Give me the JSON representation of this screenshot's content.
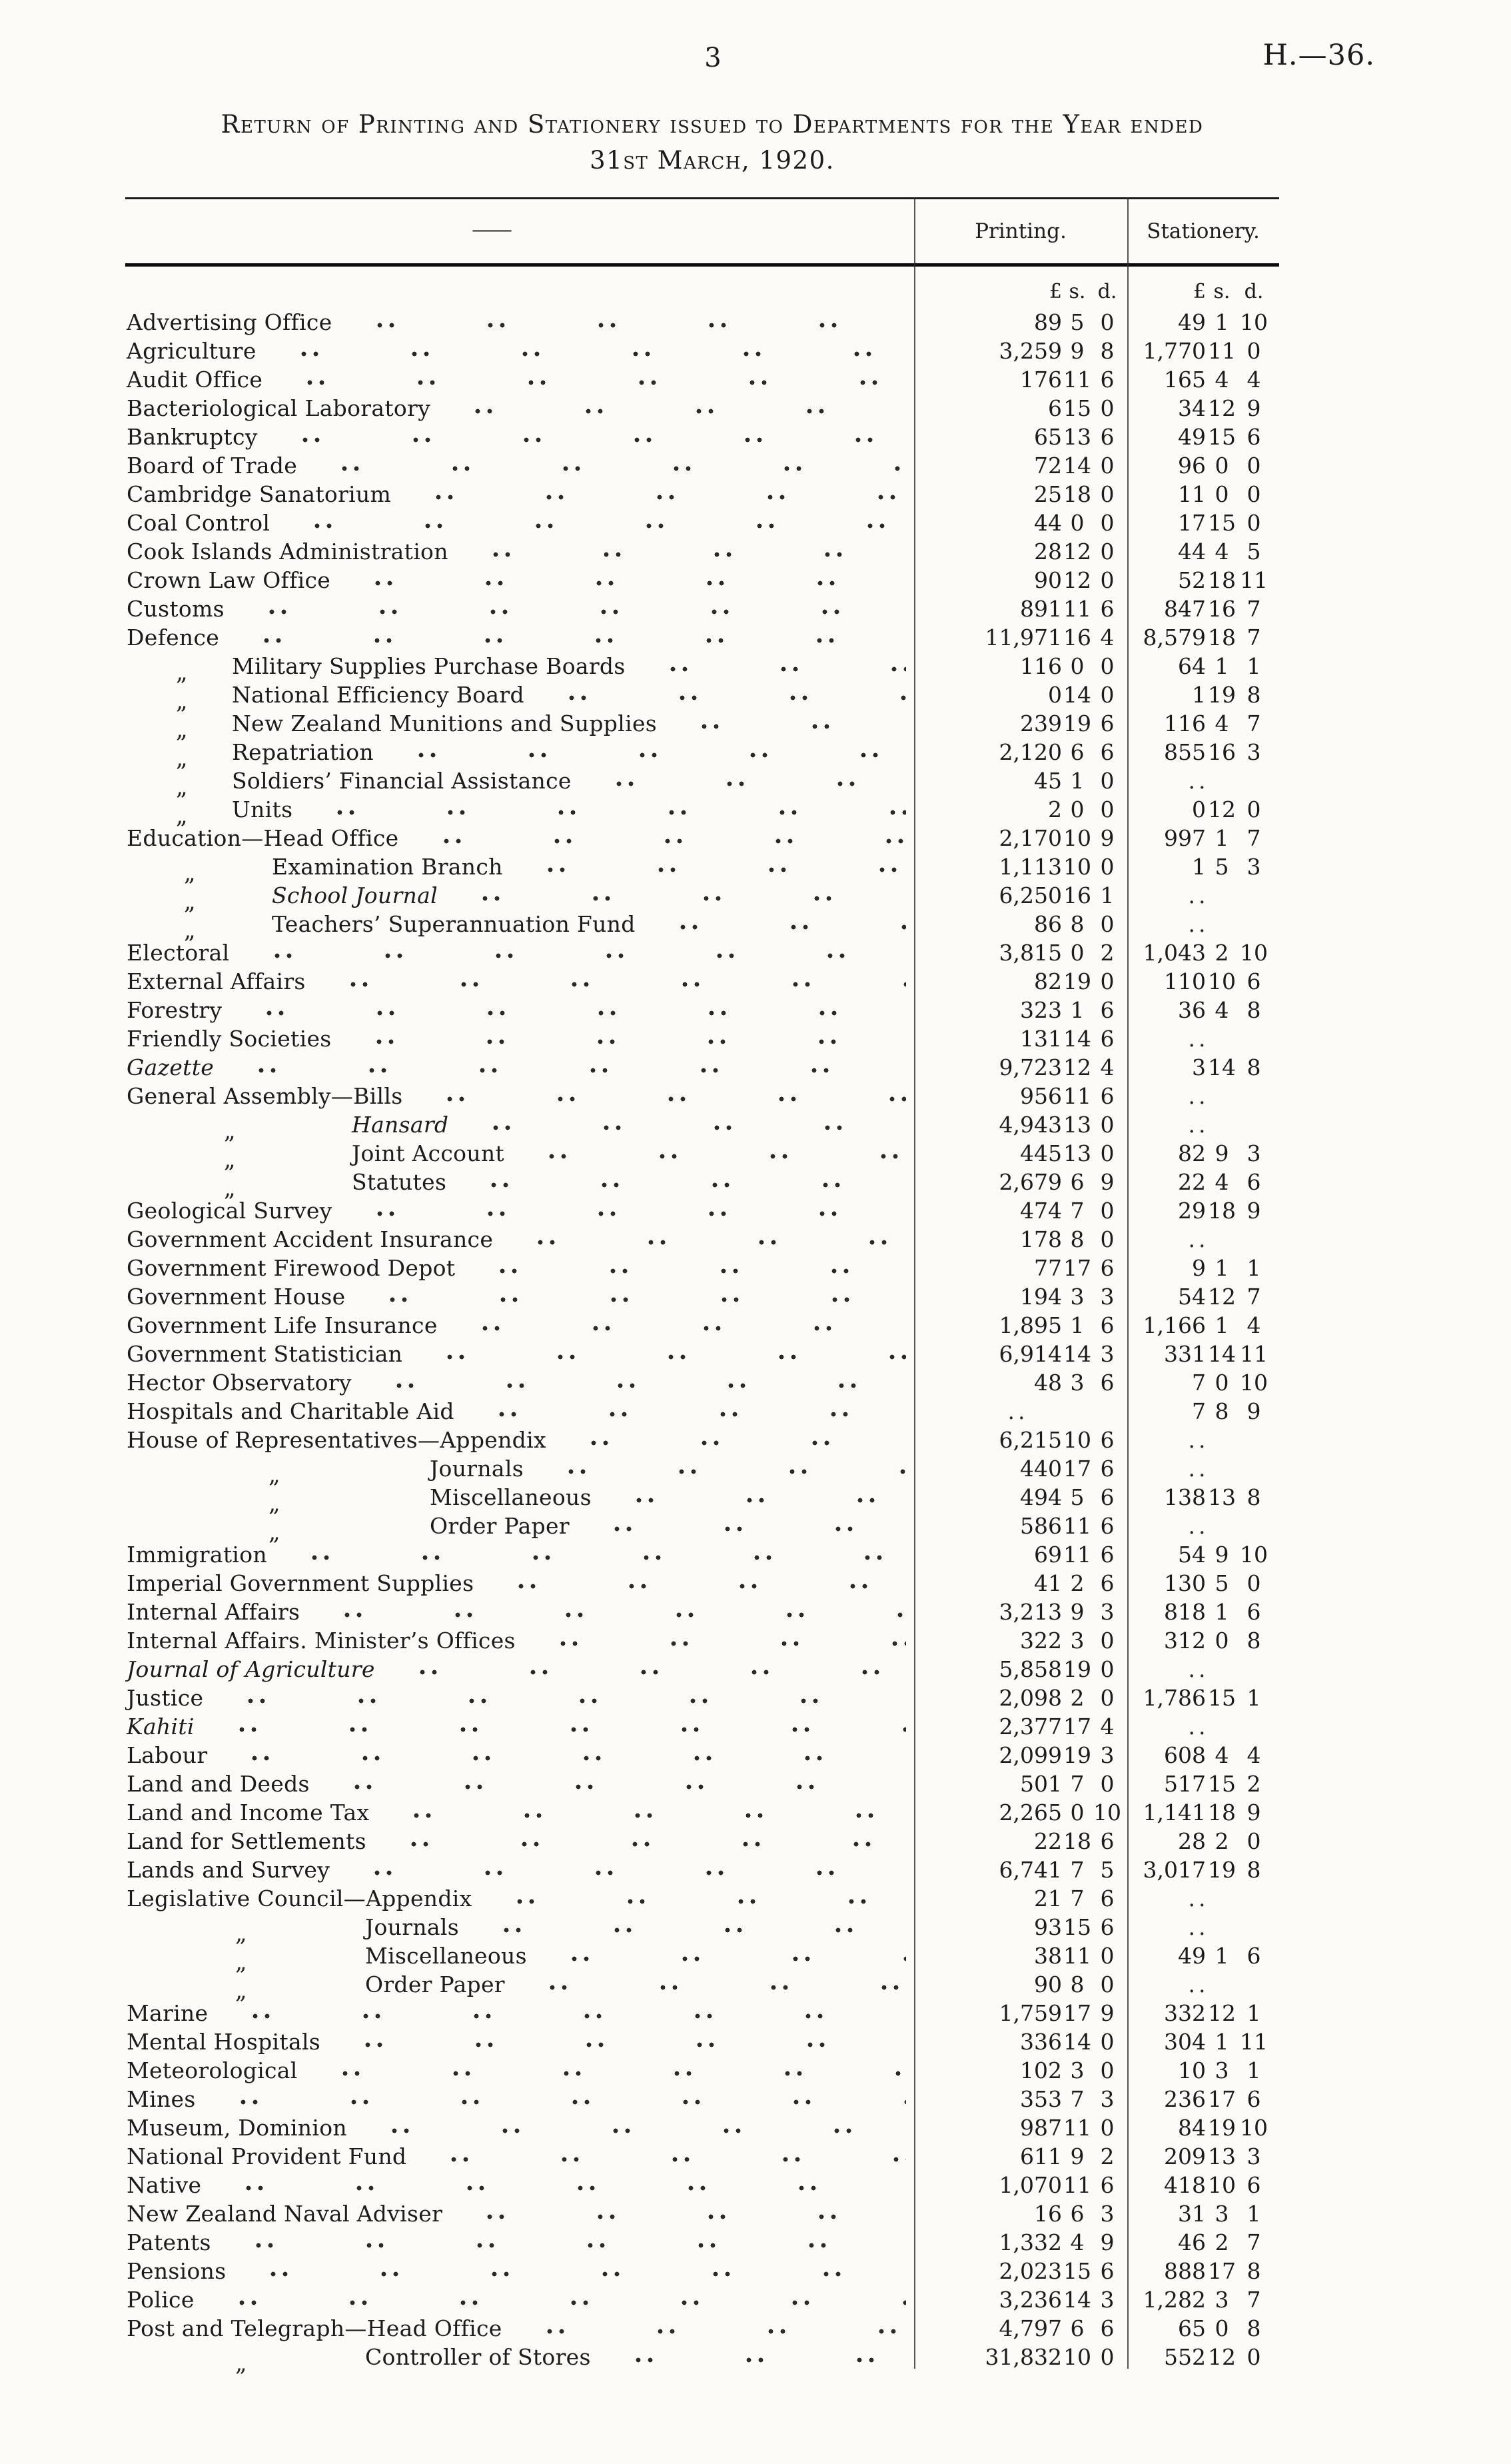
{
  "page": {
    "number": "3",
    "doc_ref": "H.—36."
  },
  "title": {
    "line1": "Return of Printing and Stationery issued to Departments for the Year ended",
    "line2": "31st March, 1920."
  },
  "table": {
    "name_header_dash": "——",
    "col_headers": {
      "printing": "Printing.",
      "stationery": "Stationery."
    },
    "money_units": [
      "£",
      "s.",
      "d."
    ],
    "ditto_mark": "„",
    "blank_mark": "..",
    "rows": [
      {
        "name": "Advertising Office",
        "printing": [
          "89",
          "5",
          "0"
        ],
        "stationery": [
          "49",
          "1",
          "10"
        ]
      },
      {
        "name": "Agriculture",
        "printing": [
          "3,259",
          "9",
          "8"
        ],
        "stationery": [
          "1,770",
          "11",
          "0"
        ]
      },
      {
        "name": "Audit Office",
        "printing": [
          "176",
          "11",
          "6"
        ],
        "stationery": [
          "165",
          "4",
          "4"
        ]
      },
      {
        "name": "Bacteriological Laboratory",
        "printing": [
          "6",
          "15",
          "0"
        ],
        "stationery": [
          "34",
          "12",
          "9"
        ]
      },
      {
        "name": "Bankruptcy",
        "printing": [
          "65",
          "13",
          "6"
        ],
        "stationery": [
          "49",
          "15",
          "6"
        ]
      },
      {
        "name": "Board of Trade",
        "printing": [
          "72",
          "14",
          "0"
        ],
        "stationery": [
          "96",
          "0",
          "0"
        ]
      },
      {
        "name": "Cambridge Sanatorium",
        "printing": [
          "25",
          "18",
          "0"
        ],
        "stationery": [
          "11",
          "0",
          "0"
        ]
      },
      {
        "name": "Coal Control",
        "printing": [
          "44",
          "0",
          "0"
        ],
        "stationery": [
          "17",
          "15",
          "0"
        ]
      },
      {
        "name": "Cook Islands Administration",
        "printing": [
          "28",
          "12",
          "0"
        ],
        "stationery": [
          "44",
          "4",
          "5"
        ]
      },
      {
        "name": "Crown Law Office",
        "printing": [
          "90",
          "12",
          "0"
        ],
        "stationery": [
          "52",
          "18",
          "11"
        ]
      },
      {
        "name": "Customs",
        "printing": [
          "891",
          "11",
          "6"
        ],
        "stationery": [
          "847",
          "16",
          "7"
        ]
      },
      {
        "name": "Defence",
        "printing": [
          "11,971",
          "16",
          "4"
        ],
        "stationery": [
          "8,579",
          "18",
          "7"
        ]
      },
      {
        "name": "Military Supplies Purchase Boards",
        "indent": "a",
        "ditto": true,
        "printing": [
          "116",
          "0",
          "0"
        ],
        "stationery": [
          "64",
          "1",
          "1"
        ]
      },
      {
        "name": "National Efficiency Board",
        "indent": "a",
        "ditto": true,
        "printing": [
          "0",
          "14",
          "0"
        ],
        "stationery": [
          "1",
          "19",
          "8"
        ]
      },
      {
        "name": "New Zealand Munitions and Supplies",
        "indent": "a",
        "ditto": true,
        "printing": [
          "239",
          "19",
          "6"
        ],
        "stationery": [
          "116",
          "4",
          "7"
        ]
      },
      {
        "name": "Repatriation",
        "indent": "a",
        "ditto": true,
        "printing": [
          "2,120",
          "6",
          "6"
        ],
        "stationery": [
          "855",
          "16",
          "3"
        ]
      },
      {
        "name": "Soldiers’ Financial Assistance",
        "indent": "a",
        "ditto": true,
        "printing": [
          "45",
          "1",
          "0"
        ],
        "stationery": null
      },
      {
        "name": "Units",
        "indent": "a",
        "ditto": true,
        "printing": [
          "2",
          "0",
          "0"
        ],
        "stationery": [
          "0",
          "12",
          "0"
        ]
      },
      {
        "name": "Education—Head Office",
        "printing": [
          "2,170",
          "10",
          "9"
        ],
        "stationery": [
          "997",
          "1",
          "7"
        ]
      },
      {
        "name": "Examination Branch",
        "indent": "b",
        "ditto": true,
        "printing": [
          "1,113",
          "10",
          "0"
        ],
        "stationery": [
          "1",
          "5",
          "3"
        ]
      },
      {
        "name": "School Journal",
        "indent": "b",
        "ditto": true,
        "italic": true,
        "printing": [
          "6,250",
          "16",
          "1"
        ],
        "stationery": null
      },
      {
        "name": "Teachers’ Superannuation Fund",
        "indent": "b",
        "ditto": true,
        "printing": [
          "86",
          "8",
          "0"
        ],
        "stationery": null
      },
      {
        "name": "Electoral",
        "printing": [
          "3,815",
          "0",
          "2"
        ],
        "stationery": [
          "1,043",
          "2",
          "10"
        ]
      },
      {
        "name": "External Affairs",
        "printing": [
          "82",
          "19",
          "0"
        ],
        "stationery": [
          "110",
          "10",
          "6"
        ]
      },
      {
        "name": "Forestry",
        "printing": [
          "323",
          "1",
          "6"
        ],
        "stationery": [
          "36",
          "4",
          "8"
        ]
      },
      {
        "name": "Friendly Societies",
        "printing": [
          "131",
          "14",
          "6"
        ],
        "stationery": null
      },
      {
        "name": "Gazette",
        "italic": true,
        "printing": [
          "9,723",
          "12",
          "4"
        ],
        "stationery": [
          "3",
          "14",
          "8"
        ]
      },
      {
        "name": "General Assembly—Bills",
        "printing": [
          "956",
          "11",
          "6"
        ],
        "stationery": null
      },
      {
        "name": "Hansard",
        "indent": "c",
        "ditto": true,
        "italic": true,
        "printing": [
          "4,943",
          "13",
          "0"
        ],
        "stationery": null
      },
      {
        "name": "Joint Account",
        "indent": "c",
        "ditto": true,
        "printing": [
          "445",
          "13",
          "0"
        ],
        "stationery": [
          "82",
          "9",
          "3"
        ]
      },
      {
        "name": "Statutes",
        "indent": "c",
        "ditto": true,
        "printing": [
          "2,679",
          "6",
          "9"
        ],
        "stationery": [
          "22",
          "4",
          "6"
        ]
      },
      {
        "name": "Geological Survey",
        "printing": [
          "474",
          "7",
          "0"
        ],
        "stationery": [
          "29",
          "18",
          "9"
        ]
      },
      {
        "name": "Government Accident Insurance",
        "printing": [
          "178",
          "8",
          "0"
        ],
        "stationery": null
      },
      {
        "name": "Government Firewood Depot",
        "printing": [
          "77",
          "17",
          "6"
        ],
        "stationery": [
          "9",
          "1",
          "1"
        ]
      },
      {
        "name": "Government House",
        "printing": [
          "194",
          "3",
          "3"
        ],
        "stationery": [
          "54",
          "12",
          "7"
        ]
      },
      {
        "name": "Government Life Insurance",
        "printing": [
          "1,895",
          "1",
          "6"
        ],
        "stationery": [
          "1,166",
          "1",
          "4"
        ]
      },
      {
        "name": "Government Statistician",
        "printing": [
          "6,914",
          "14",
          "3"
        ],
        "stationery": [
          "331",
          "14",
          "11"
        ]
      },
      {
        "name": "Hector Observatory",
        "printing": [
          "48",
          "3",
          "6"
        ],
        "stationery": [
          "7",
          "0",
          "10"
        ]
      },
      {
        "name": "Hospitals and Charitable Aid",
        "printing": null,
        "stationery": [
          "7",
          "8",
          "9"
        ]
      },
      {
        "name": "House of Representatives—Appendix",
        "printing": [
          "6,215",
          "10",
          "6"
        ],
        "stationery": null
      },
      {
        "name": "Journals",
        "indent": "d",
        "ditto": true,
        "printing": [
          "440",
          "17",
          "6"
        ],
        "stationery": null
      },
      {
        "name": "Miscellaneous",
        "indent": "d",
        "ditto": true,
        "printing": [
          "494",
          "5",
          "6"
        ],
        "stationery": [
          "138",
          "13",
          "8"
        ]
      },
      {
        "name": "Order Paper",
        "indent": "d",
        "ditto": true,
        "printing": [
          "586",
          "11",
          "6"
        ],
        "stationery": null
      },
      {
        "name": "Immigration",
        "printing": [
          "69",
          "11",
          "6"
        ],
        "stationery": [
          "54",
          "9",
          "10"
        ]
      },
      {
        "name": "Imperial Government Supplies",
        "printing": [
          "41",
          "2",
          "6"
        ],
        "stationery": [
          "130",
          "5",
          "0"
        ]
      },
      {
        "name": "Internal Affairs",
        "printing": [
          "3,213",
          "9",
          "3"
        ],
        "stationery": [
          "818",
          "1",
          "6"
        ]
      },
      {
        "name": "Internal Affairs. Minister’s Offices",
        "printing": [
          "322",
          "3",
          "0"
        ],
        "stationery": [
          "312",
          "0",
          "8"
        ]
      },
      {
        "name": "Journal of Agriculture",
        "italic": true,
        "printing": [
          "5,858",
          "19",
          "0"
        ],
        "stationery": null
      },
      {
        "name": "Justice",
        "printing": [
          "2,098",
          "2",
          "0"
        ],
        "stationery": [
          "1,786",
          "15",
          "1"
        ]
      },
      {
        "name": "Kahiti",
        "italic": true,
        "printing": [
          "2,377",
          "17",
          "4"
        ],
        "stationery": null
      },
      {
        "name": "Labour",
        "printing": [
          "2,099",
          "19",
          "3"
        ],
        "stationery": [
          "608",
          "4",
          "4"
        ]
      },
      {
        "name": "Land and Deeds",
        "printing": [
          "501",
          "7",
          "0"
        ],
        "stationery": [
          "517",
          "15",
          "2"
        ]
      },
      {
        "name": "Land and Income Tax",
        "printing": [
          "2,265",
          "0",
          "10"
        ],
        "stationery": [
          "1,141",
          "18",
          "9"
        ]
      },
      {
        "name": "Land for Settlements",
        "printing": [
          "22",
          "18",
          "6"
        ],
        "stationery": [
          "28",
          "2",
          "0"
        ]
      },
      {
        "name": "Lands and Survey",
        "printing": [
          "6,741",
          "7",
          "5"
        ],
        "stationery": [
          "3,017",
          "19",
          "8"
        ]
      },
      {
        "name": "Legislative Council—Appendix",
        "printing": [
          "21",
          "7",
          "6"
        ],
        "stationery": null
      },
      {
        "name": "Journals",
        "indent": "e",
        "ditto": true,
        "printing": [
          "93",
          "15",
          "6"
        ],
        "stationery": null
      },
      {
        "name": "Miscellaneous",
        "indent": "e",
        "ditto": true,
        "printing": [
          "38",
          "11",
          "0"
        ],
        "stationery": [
          "49",
          "1",
          "6"
        ]
      },
      {
        "name": "Order Paper",
        "indent": "e",
        "ditto": true,
        "printing": [
          "90",
          "8",
          "0"
        ],
        "stationery": null
      },
      {
        "name": "Marine",
        "printing": [
          "1,759",
          "17",
          "9"
        ],
        "stationery": [
          "332",
          "12",
          "1"
        ]
      },
      {
        "name": "Mental Hospitals",
        "printing": [
          "336",
          "14",
          "0"
        ],
        "stationery": [
          "304",
          "1",
          "11"
        ]
      },
      {
        "name": "Meteorological",
        "printing": [
          "102",
          "3",
          "0"
        ],
        "stationery": [
          "10",
          "3",
          "1"
        ]
      },
      {
        "name": "Mines",
        "printing": [
          "353",
          "7",
          "3"
        ],
        "stationery": [
          "236",
          "17",
          "6"
        ]
      },
      {
        "name": "Museum, Dominion",
        "printing": [
          "987",
          "11",
          "0"
        ],
        "stationery": [
          "84",
          "19",
          "10"
        ]
      },
      {
        "name": "National Provident Fund",
        "printing": [
          "611",
          "9",
          "2"
        ],
        "stationery": [
          "209",
          "13",
          "3"
        ]
      },
      {
        "name": "Native",
        "printing": [
          "1,070",
          "11",
          "6"
        ],
        "stationery": [
          "418",
          "10",
          "6"
        ]
      },
      {
        "name": "New Zealand Naval Adviser",
        "printing": [
          "16",
          "6",
          "3"
        ],
        "stationery": [
          "31",
          "3",
          "1"
        ]
      },
      {
        "name": "Patents",
        "printing": [
          "1,332",
          "4",
          "9"
        ],
        "stationery": [
          "46",
          "2",
          "7"
        ]
      },
      {
        "name": "Pensions",
        "printing": [
          "2,023",
          "15",
          "6"
        ],
        "stationery": [
          "888",
          "17",
          "8"
        ]
      },
      {
        "name": "Police",
        "printing": [
          "3,236",
          "14",
          "3"
        ],
        "stationery": [
          "1,282",
          "3",
          "7"
        ]
      },
      {
        "name": "Post and Telegraph—Head Office",
        "printing": [
          "4,797",
          "6",
          "6"
        ],
        "stationery": [
          "65",
          "0",
          "8"
        ]
      },
      {
        "name": "Controller of Stores",
        "indent": "e",
        "ditto": true,
        "printing": [
          "31,832",
          "10",
          "0"
        ],
        "stationery": [
          "552",
          "12",
          "0"
        ]
      }
    ]
  }
}
